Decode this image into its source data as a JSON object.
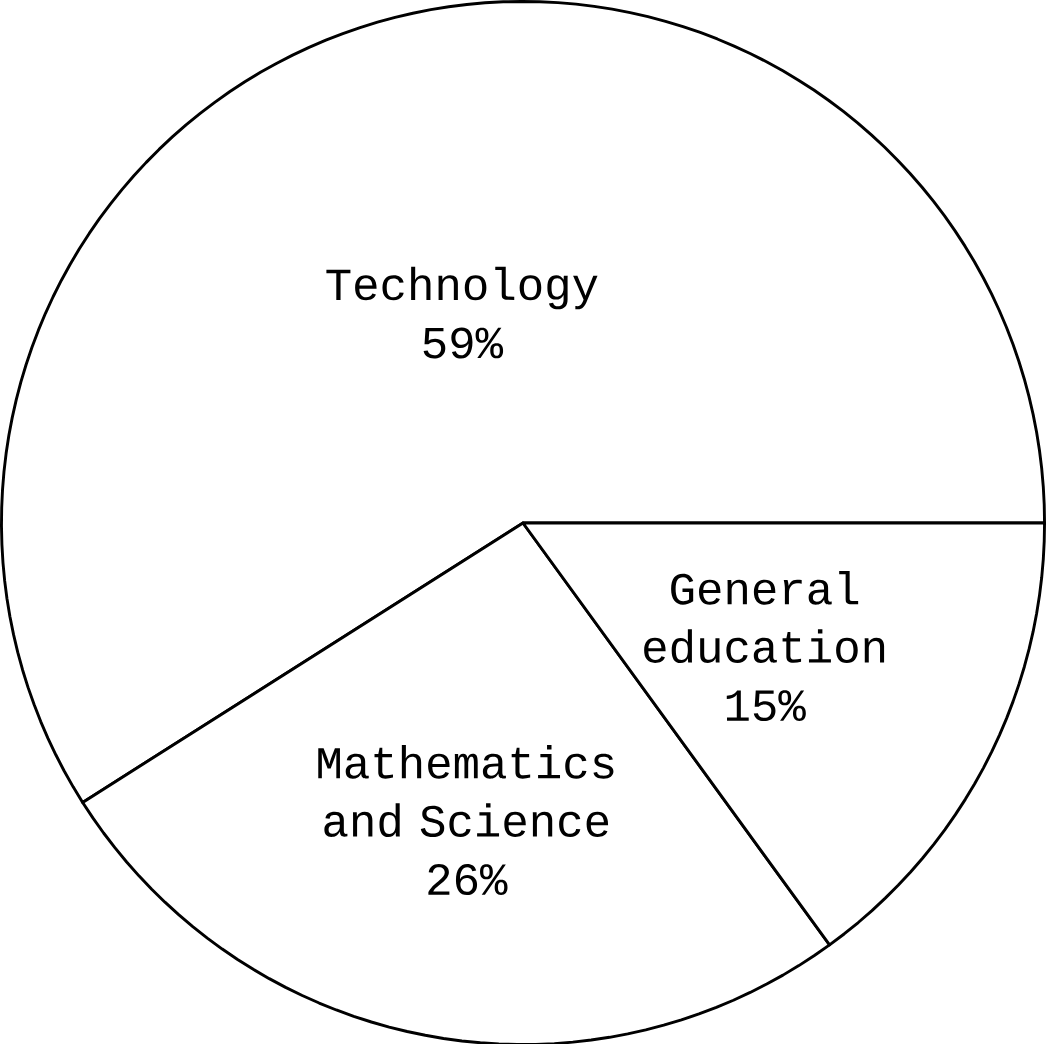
{
  "chart_data": {
    "type": "pie",
    "categories": [
      "Technology",
      "Mathematics and Science",
      "General education"
    ],
    "values": [
      59,
      26,
      15
    ],
    "value_labels": [
      "59%",
      "26%",
      "15%"
    ],
    "colors": [
      "#ffffff",
      "#ffffff",
      "#ffffff"
    ]
  }
}
